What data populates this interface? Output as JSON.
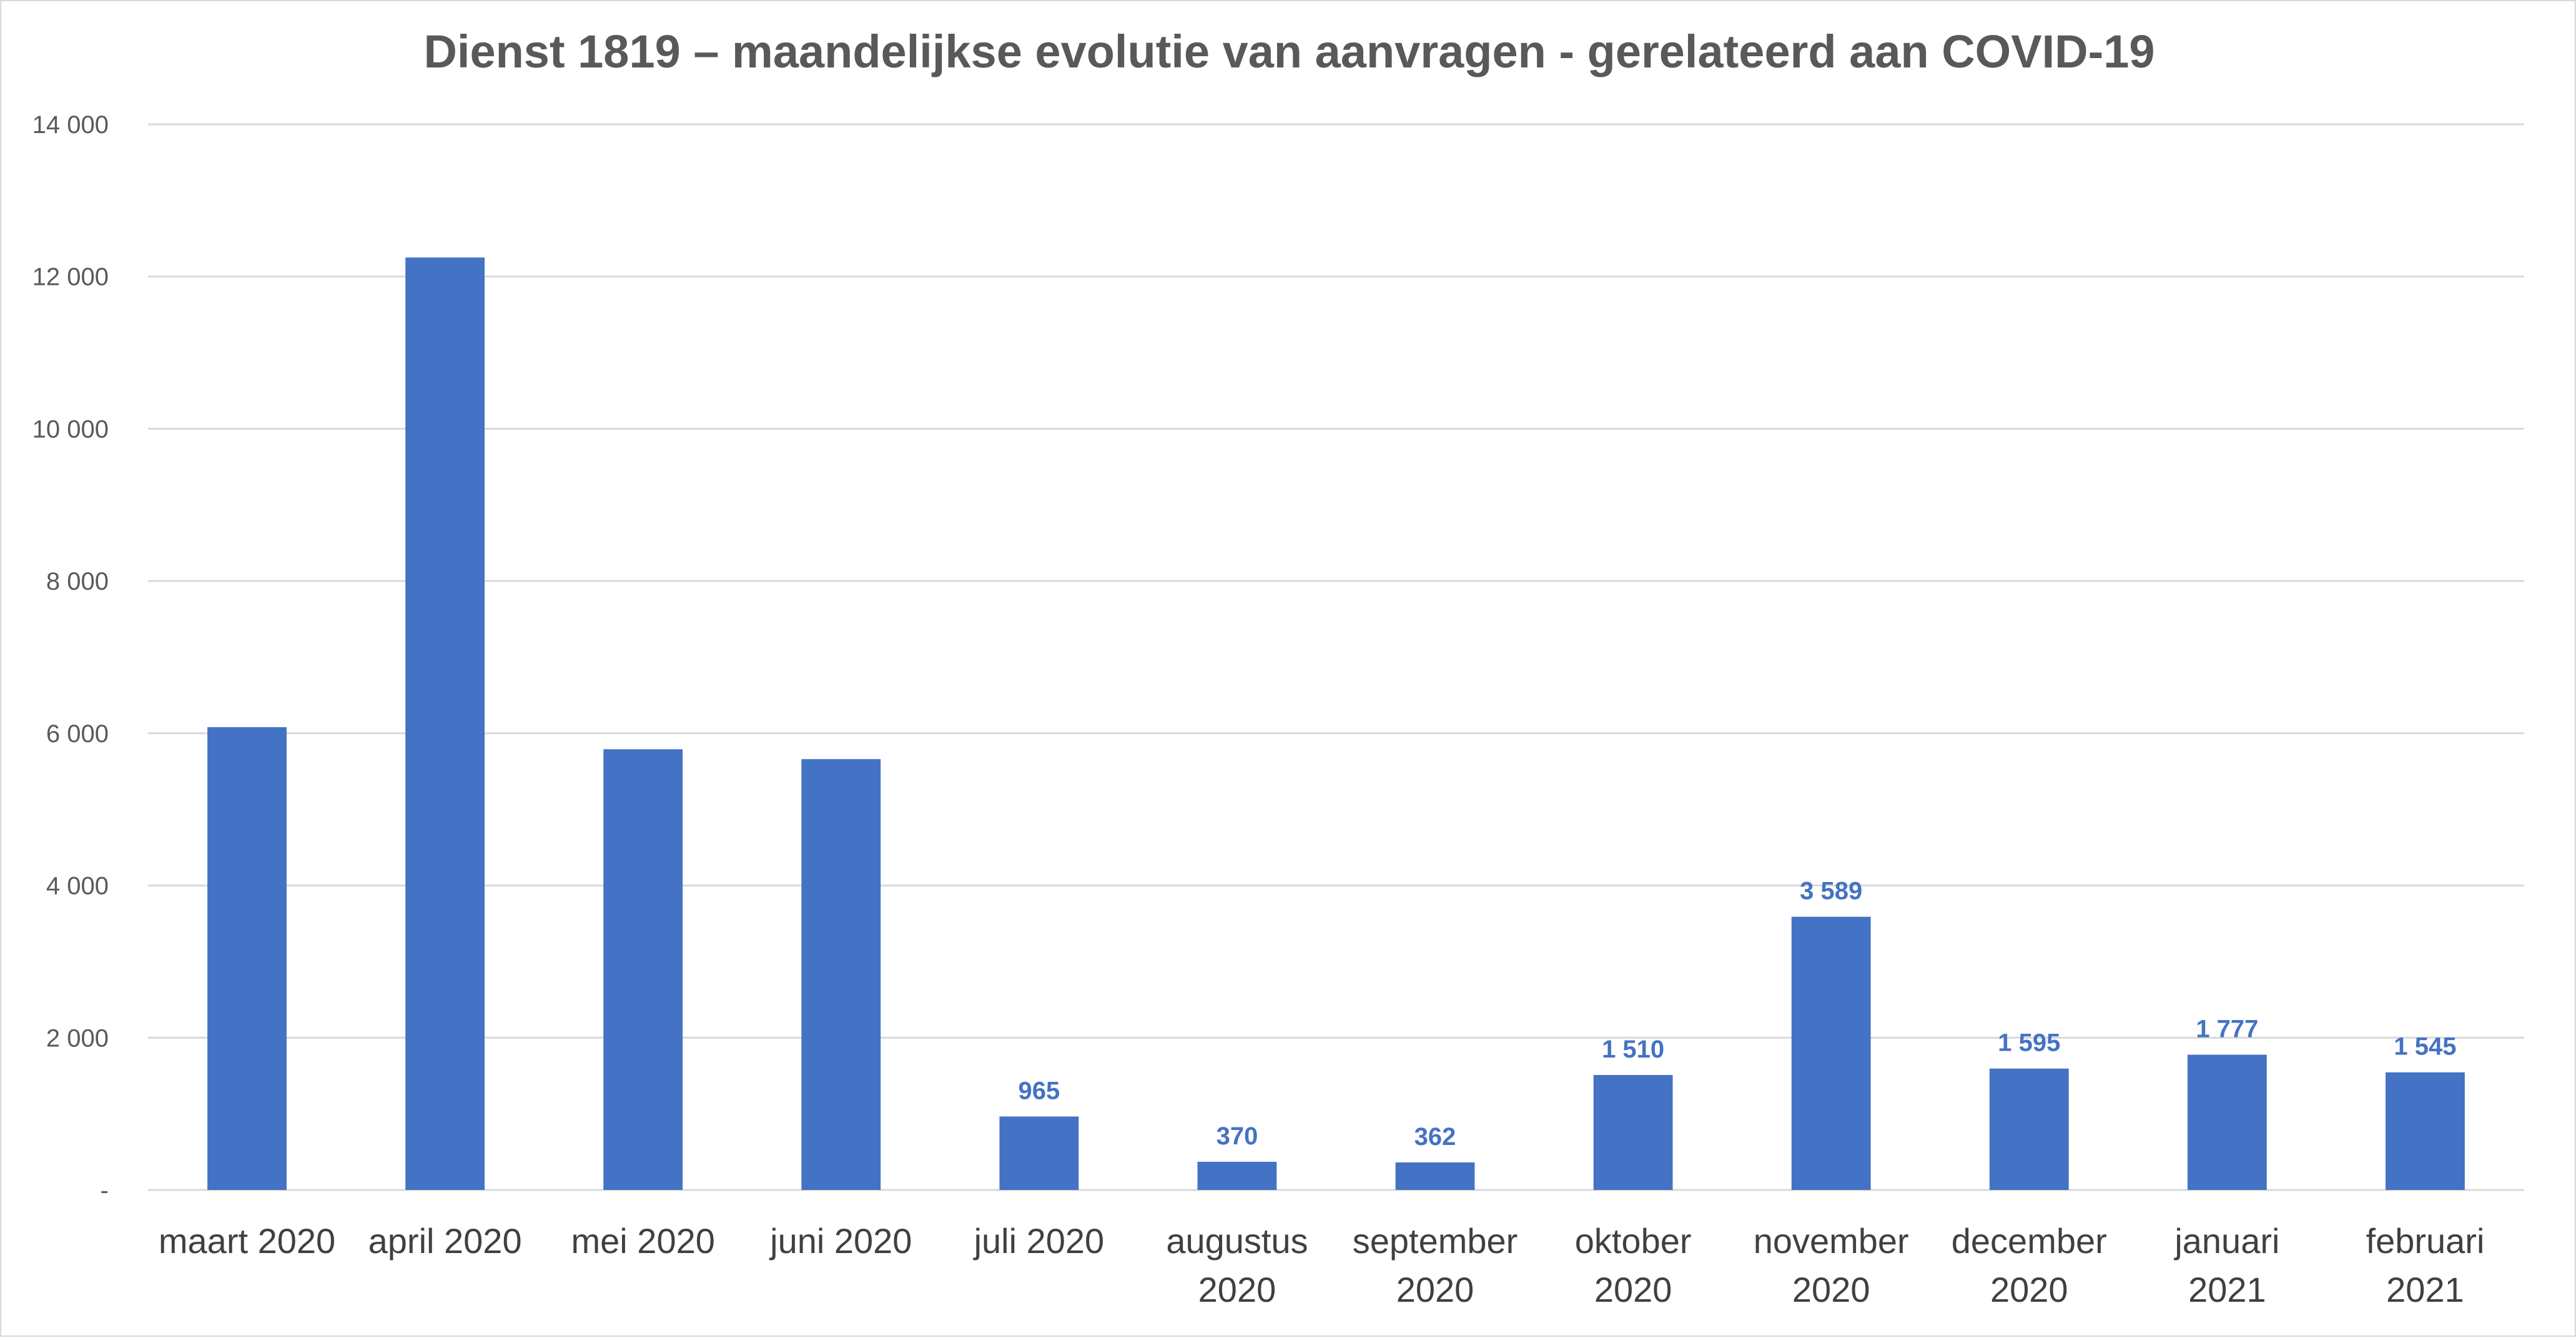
{
  "chart_data": {
    "type": "bar",
    "title": "Dienst 1819 – maandelijkse evolutie van aanvragen - gerelateerd aan COVID-19",
    "xlabel": "",
    "ylabel": "",
    "ylim": [
      0,
      14000
    ],
    "yticks": [
      0,
      2000,
      4000,
      6000,
      8000,
      10000,
      12000,
      14000
    ],
    "ytick_labels": [
      "-",
      "2 000",
      "4 000",
      "6 000",
      "8 000",
      "10 000",
      "12 000",
      "14 000"
    ],
    "grid": true,
    "bar_color": "#4472c4",
    "categories": [
      [
        "maart 2020"
      ],
      [
        "april 2020"
      ],
      [
        "mei 2020"
      ],
      [
        "juni 2020"
      ],
      [
        "juli 2020"
      ],
      [
        "augustus",
        "2020"
      ],
      [
        "september",
        "2020"
      ],
      [
        "oktober",
        "2020"
      ],
      [
        "november",
        "2020"
      ],
      [
        "december",
        "2020"
      ],
      [
        "januari",
        "2021"
      ],
      [
        "februari",
        "2021"
      ]
    ],
    "values": [
      6080,
      12250,
      5790,
      5660,
      965,
      370,
      362,
      1510,
      3589,
      1595,
      1777,
      1545
    ],
    "data_labels": [
      "",
      "",
      "",
      "",
      "965",
      "370",
      "362",
      "1 510",
      "3 589",
      "1 595",
      "1 777",
      "1 545"
    ]
  }
}
